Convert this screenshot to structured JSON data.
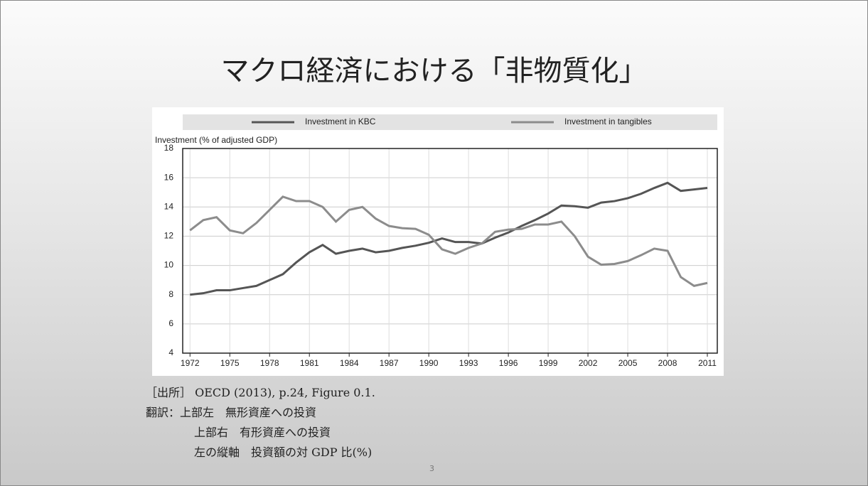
{
  "slide": {
    "title": "マクロ経済における「非物質化」",
    "source": "［出所］ OECD (2013), p.24, Figure 0.1.",
    "notes": [
      "翻訳：上部左　無形資産への投資",
      "上部右　有形資産への投資",
      "左の縦軸　投資額の対 GDP 比(%)"
    ],
    "page": "3"
  },
  "chart_data": {
    "type": "line",
    "y_label": "Investment (% of adjusted GDP)",
    "x": [
      1972,
      1973,
      1974,
      1975,
      1976,
      1977,
      1978,
      1979,
      1980,
      1981,
      1982,
      1983,
      1984,
      1985,
      1986,
      1987,
      1988,
      1989,
      1990,
      1991,
      1992,
      1993,
      1994,
      1995,
      1996,
      1997,
      1998,
      1999,
      2000,
      2001,
      2002,
      2003,
      2004,
      2005,
      2006,
      2007,
      2008,
      2009,
      2010,
      2011
    ],
    "series": [
      {
        "name": "Investment in KBC",
        "color": "#555555",
        "values": [
          8.0,
          8.1,
          8.3,
          8.3,
          8.45,
          8.6,
          9.0,
          9.4,
          10.2,
          10.9,
          11.4,
          10.8,
          11.0,
          11.15,
          10.9,
          11.0,
          11.2,
          11.35,
          11.55,
          11.85,
          11.6,
          11.6,
          11.5,
          11.9,
          12.25,
          12.7,
          13.1,
          13.55,
          14.1,
          14.05,
          13.95,
          14.3,
          14.4,
          14.6,
          14.9,
          15.3,
          15.65,
          15.1,
          15.2,
          15.3
        ]
      },
      {
        "name": "Investment in tangibles",
        "color": "#8c8c8c",
        "values": [
          12.4,
          13.1,
          13.3,
          12.4,
          12.2,
          12.9,
          13.8,
          14.7,
          14.4,
          14.4,
          14.0,
          13.0,
          13.8,
          14.0,
          13.2,
          12.7,
          12.55,
          12.5,
          12.1,
          11.1,
          10.8,
          11.2,
          11.5,
          12.3,
          12.45,
          12.5,
          12.8,
          12.8,
          13.0,
          12.0,
          10.6,
          10.05,
          10.1,
          10.3,
          10.7,
          11.15,
          11.0,
          9.2,
          8.6,
          8.8
        ]
      }
    ],
    "xlim": [
      1971.45,
      2011.75
    ],
    "xticks": [
      1972,
      1975,
      1978,
      1981,
      1984,
      1987,
      1990,
      1993,
      1996,
      1999,
      2002,
      2005,
      2008,
      2011
    ],
    "ylim": [
      4,
      18
    ],
    "yticks": [
      4,
      6,
      8,
      10,
      12,
      14,
      16,
      18
    ],
    "grid": true
  }
}
